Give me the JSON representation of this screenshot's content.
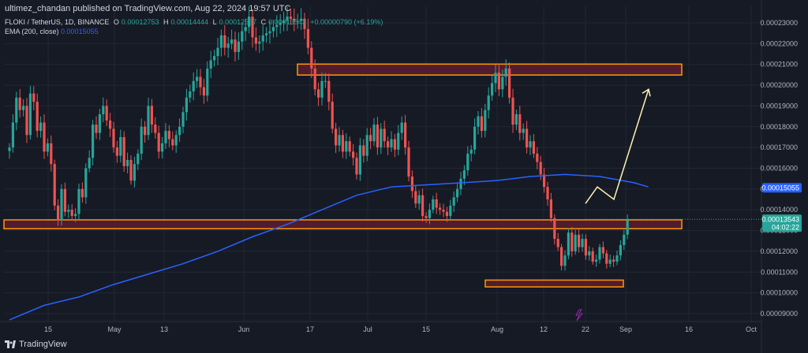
{
  "published_by": "ultimez_chandan published on TradingView.com, Aug 22, 2024 19:57 UTC",
  "symbol": {
    "name": "FLOKI / TetherUS, 1D, BINANCE",
    "open_label": "O",
    "open": "0.00012753",
    "high_label": "H",
    "high": "0.00014444",
    "low_label": "L",
    "low": "0.00012537",
    "close_label": "C",
    "close": "0.00013543",
    "change": "+0.00000790 (+6.19%)"
  },
  "ema_label": "EMA (200, close)",
  "ema_value": "0.00015055",
  "logo_text": "TradingView",
  "colors": {
    "background": "#161a25",
    "up": "#26a69a",
    "down": "#ef5350",
    "ema": "#2962ff",
    "zone_border": "#ff9800",
    "zone_fill": "#5a1f33",
    "arrow": "#fff3b0"
  },
  "chart_data": {
    "type": "candlestick",
    "x_tick_labels": [
      "15",
      "May",
      "13",
      "Jun",
      "17",
      "Jul",
      "15",
      "Aug",
      "12",
      "22",
      "Sep",
      "16",
      "Oct"
    ],
    "y_tick_labels": [
      "0.00023000",
      "0.00022000",
      "0.00021000",
      "0.00020000",
      "0.00019000",
      "0.00018000",
      "0.00017000",
      "0.00016000",
      "0.00015000",
      "0.00014000",
      "0.00013000",
      "0.00012000",
      "0.00011000",
      "0.00010000",
      "0.00009000"
    ],
    "ylim": [
      8.6e-05,
      0.000235
    ],
    "current_price_label": "0.00013543",
    "countdown_label": "04:02:22",
    "ema_price_label": "0.00015055",
    "series": [
      {
        "name": "FLOKI / TetherUS",
        "close": [
          0.00017,
          0.000182,
          0.000194,
          0.000188,
          0.00019,
          0.000176,
          0.000196,
          0.000192,
          0.000178,
          0.000182,
          0.000168,
          0.000172,
          0.000162,
          0.000142,
          0.000135,
          0.00015,
          0.000139,
          0.00014,
          0.000137,
          0.000138,
          0.00015,
          0.000146,
          0.00016,
          0.000165,
          0.000181,
          0.000177,
          0.000186,
          0.00019,
          0.000183,
          0.000179,
          0.00017,
          0.000166,
          0.000175,
          0.000161,
          0.000164,
          0.000154,
          0.000162,
          0.000167,
          0.00018,
          0.000176,
          0.00019,
          0.000181,
          0.000177,
          0.000168,
          0.000172,
          0.000178,
          0.000174,
          0.000171,
          0.000176,
          0.00018,
          0.000187,
          0.000194,
          0.000197,
          0.000202,
          0.000204,
          0.000199,
          0.000195,
          0.000208,
          0.000212,
          0.000214,
          0.000218,
          0.000224,
          0.000218,
          0.00022,
          0.000222,
          0.000216,
          0.000221,
          0.000226,
          0.000228,
          0.000233,
          0.000223,
          0.00022,
          0.000221,
          0.000224,
          0.000225,
          0.000226,
          0.000228,
          0.000229,
          0.00023,
          0.000231,
          0.000233,
          0.000232,
          0.000231,
          0.000231,
          0.000232,
          0.000227,
          0.000218,
          0.000208,
          0.000198,
          0.000194,
          0.000202,
          0.000202,
          0.000192,
          0.000179,
          0.000171,
          0.000176,
          0.000168,
          0.000173,
          0.000168,
          0.000165,
          0.000157,
          0.000171,
          0.000166,
          0.000176,
          0.000173,
          0.000181,
          0.00017,
          0.000179,
          0.000173,
          0.00017,
          0.000174,
          0.000169,
          0.000177,
          0.000182,
          0.00017,
          0.000156,
          0.000149,
          0.000143,
          0.000147,
          0.000137,
          0.000136,
          0.00014,
          0.000145,
          0.000141,
          0.00014,
          0.000139,
          0.000137,
          0.000142,
          0.000146,
          0.00015,
          0.000155,
          0.000159,
          0.000167,
          0.000169,
          0.00018,
          0.000185,
          0.000178,
          0.000188,
          0.000195,
          0.000201,
          0.000206,
          0.000198,
          0.000204,
          0.000208,
          0.000194,
          0.000181,
          0.000186,
          0.000177,
          0.000179,
          0.00017,
          0.000173,
          0.000167,
          0.000163,
          0.000157,
          0.000151,
          0.000145,
          0.000136,
          0.000126,
          0.000122,
          0.000113,
          0.000118,
          0.000129,
          0.00012,
          0.000128,
          0.000122,
          0.000126,
          0.000118,
          0.00012,
          0.000115,
          0.000116,
          0.000122,
          0.000119,
          0.000114,
          0.000116,
          0.000115,
          0.000118,
          0.000123,
          0.000128,
          0.000135
        ]
      },
      {
        "name": "EMA (200, close)",
        "x": [
          0,
          10,
          20,
          30,
          40,
          50,
          60,
          70,
          80,
          90,
          100,
          110,
          120,
          130,
          140,
          150,
          160,
          170,
          180,
          184
        ],
        "y": [
          8.7e-05,
          9.4e-05,
          9.8e-05,
          0.000104,
          0.000109,
          0.000114,
          0.00012,
          0.000127,
          0.000133,
          0.00014,
          0.000147,
          0.000151,
          0.000152,
          0.000153,
          0.000154,
          0.000156,
          0.000157,
          0.000156,
          0.000153,
          0.000151
        ]
      }
    ],
    "annotations": [
      {
        "type": "zone",
        "y": [
          0.000206,
          0.000209
        ]
      },
      {
        "type": "zone",
        "y": [
          0.000132,
          0.000134
        ]
      },
      {
        "type": "zone",
        "y": [
          0.000104,
          0.000105
        ]
      },
      {
        "type": "projection",
        "y": [
          0.000143,
          0.000151,
          0.000145,
          0.000198
        ]
      }
    ]
  }
}
